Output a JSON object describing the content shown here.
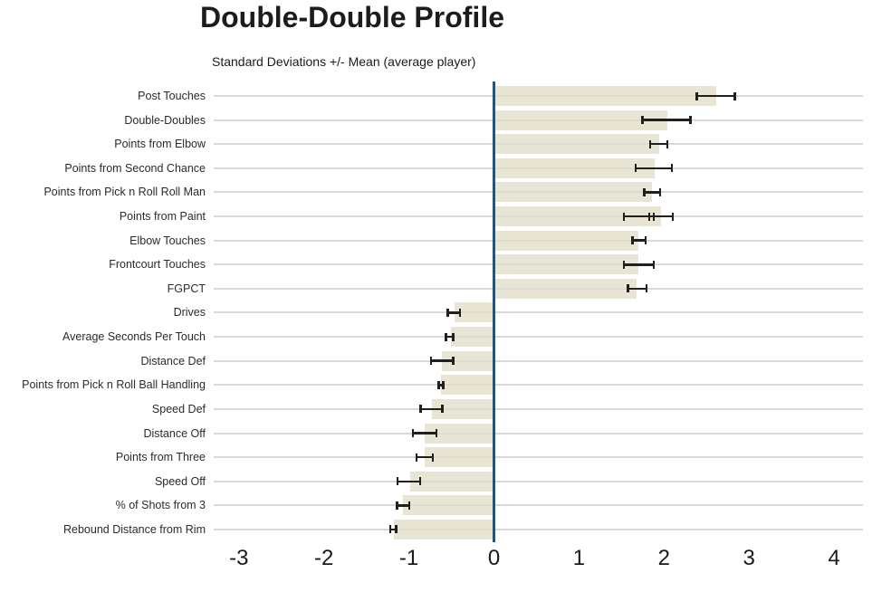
{
  "chart_data": {
    "type": "bar",
    "orientation": "horizontal",
    "title": "Double-Double Profile",
    "subtitle": "Standard Deviations +/- Mean (average player)",
    "xlabel": "",
    "ylabel": "",
    "xlim": [
      -3.3,
      4.35
    ],
    "x_ticks": [
      "-3",
      "-2",
      "-1",
      "0",
      "1",
      "2",
      "3",
      "4"
    ],
    "grid": "horizontal light-gray line per category",
    "legend": "none",
    "zero_line_color": "#1d567f",
    "bar_color": "#e9e6d5",
    "error_bar_color": "#202020",
    "gridline_color": "#d9d9d9",
    "categories": [
      "Post Touches",
      "Double-Doubles",
      "Points from Elbow",
      "Points from Second Chance",
      "Points from Pick n Roll Roll Man",
      "Points from Paint",
      "Elbow Touches",
      "Frontcourt Touches",
      "FGPCT",
      "Drives",
      "Average Seconds Per Touch",
      "Distance Def",
      "Points from Pick n Roll Ball Handling",
      "Speed Def",
      "Distance Off",
      "Points from Three",
      "Speed Off",
      "% of Shots from 3",
      "Rebound Distance from Rim"
    ],
    "values": [
      2.61,
      2.04,
      1.94,
      1.89,
      1.86,
      1.97,
      1.7,
      1.7,
      1.68,
      -0.46,
      -0.51,
      -0.61,
      -0.62,
      -0.73,
      -0.81,
      -0.82,
      -0.98,
      -1.07,
      -1.18
    ],
    "error_low": [
      2.38,
      1.74,
      1.83,
      1.66,
      1.76,
      1.82,
      1.62,
      1.52,
      1.57,
      -0.55,
      -0.57,
      -0.75,
      -0.66,
      -0.87,
      -0.96,
      -0.92,
      -1.14,
      -1.15,
      -1.23
    ],
    "error_high": [
      2.84,
      2.32,
      2.05,
      2.1,
      1.96,
      2.11,
      1.79,
      1.89,
      1.8,
      -0.39,
      -0.47,
      -0.47,
      -0.59,
      -0.6,
      -0.67,
      -0.71,
      -0.86,
      -0.99,
      -1.14
    ],
    "secondary_error_bars": [
      {
        "category": "Points from Paint",
        "low": 1.52,
        "high": 1.89
      }
    ]
  }
}
